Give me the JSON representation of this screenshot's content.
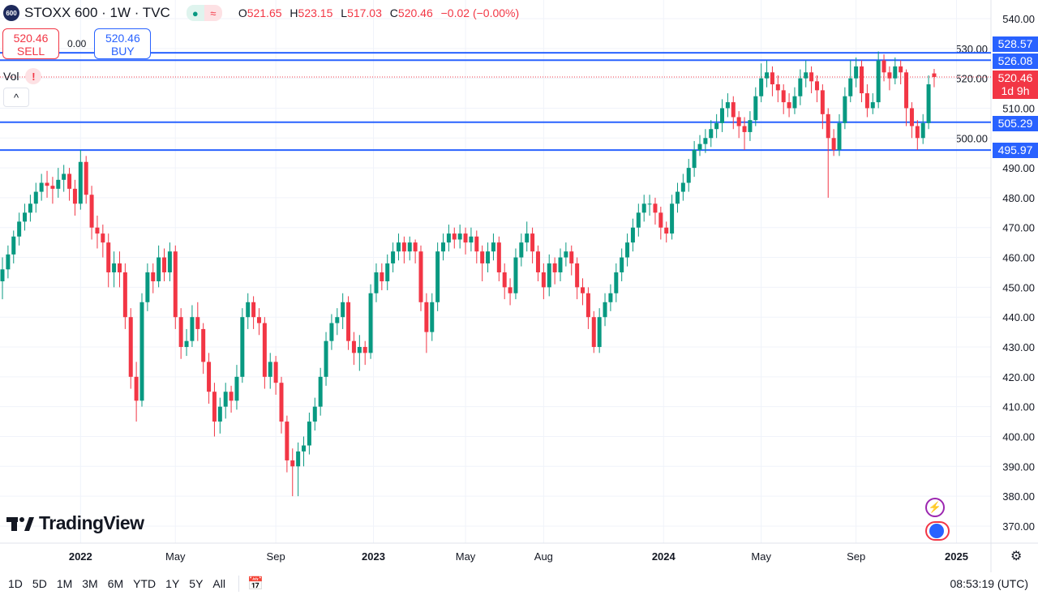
{
  "header": {
    "logo_text": "600",
    "symbol": "STOXX 600 · 1W · TVC",
    "o_label": "O",
    "o": "521.65",
    "h_label": "H",
    "h": "523.15",
    "l_label": "L",
    "l": "517.03",
    "c_label": "C",
    "c": "520.46",
    "change": "−0.02 (−0.00%)"
  },
  "trade": {
    "sell_price": "520.46",
    "sell_label": "SELL",
    "spread": "0.00",
    "buy_price": "520.46",
    "buy_label": "BUY"
  },
  "vol": {
    "label": "Vol",
    "warning": "!"
  },
  "collapse": "^",
  "brand": "TradingView",
  "price_tags": {
    "l1": "528.57",
    "l2": "526.08",
    "current": "520.46",
    "countdown": "1d 9h",
    "l3": "505.29",
    "l4": "495.97"
  },
  "ranges": [
    "1D",
    "5D",
    "1M",
    "3M",
    "6M",
    "YTD",
    "1Y",
    "5Y",
    "All"
  ],
  "clock": "08:53:19 (UTC)",
  "colors": {
    "up": "#089981",
    "down": "#f23645",
    "line": "#2962ff"
  },
  "chart_data": {
    "type": "candlestick",
    "title": "STOXX 600 · 1W · TVC",
    "interval": "1W",
    "ylim": [
      365,
      545
    ],
    "yticks": [
      540,
      530,
      520,
      510,
      500,
      490,
      480,
      470,
      460,
      450,
      440,
      430,
      420,
      410,
      400,
      390,
      380,
      370
    ],
    "ytick_labels": [
      "540.00",
      "530.00",
      "520.00",
      "510.00",
      "500.00",
      "490.00",
      "480.00",
      "470.00",
      "460.00",
      "450.00",
      "440.00",
      "430.00",
      "420.00",
      "410.00",
      "400.00",
      "390.00",
      "380.00",
      "370.00"
    ],
    "xticks": [
      {
        "label": "2022",
        "week": 14
      },
      {
        "label": "May",
        "week": 31
      },
      {
        "label": "Sep",
        "week": 49
      },
      {
        "label": "2023",
        "week": 66.5
      },
      {
        "label": "May",
        "week": 83
      },
      {
        "label": "Aug",
        "week": 97
      },
      {
        "label": "2024",
        "week": 118.5
      },
      {
        "label": "May",
        "week": 136
      },
      {
        "label": "Sep",
        "week": 153
      },
      {
        "label": "2025",
        "week": 171
      }
    ],
    "horizontal_lines": [
      528.57,
      526.08,
      505.29,
      495.97
    ],
    "last_price": 520.46,
    "candles_ohlc": [
      [
        452,
        460,
        446,
        456
      ],
      [
        456,
        464,
        453,
        461
      ],
      [
        461,
        469,
        458,
        467
      ],
      [
        467,
        475,
        464,
        472
      ],
      [
        472,
        478,
        469,
        475
      ],
      [
        475,
        481,
        472,
        478
      ],
      [
        478,
        485,
        475,
        482
      ],
      [
        482,
        488,
        479,
        485
      ],
      [
        485,
        489,
        480,
        484
      ],
      [
        484,
        487,
        478,
        483
      ],
      [
        483,
        490,
        480,
        486
      ],
      [
        486,
        491,
        482,
        488
      ],
      [
        488,
        490,
        479,
        483
      ],
      [
        483,
        486,
        474,
        478
      ],
      [
        478,
        496,
        476,
        492
      ],
      [
        492,
        494,
        478,
        481
      ],
      [
        481,
        484,
        466,
        470
      ],
      [
        470,
        474,
        463,
        468
      ],
      [
        468,
        471,
        460,
        465
      ],
      [
        465,
        468,
        450,
        455
      ],
      [
        455,
        462,
        450,
        458
      ],
      [
        458,
        462,
        450,
        455
      ],
      [
        455,
        458,
        436,
        440
      ],
      [
        440,
        443,
        416,
        420
      ],
      [
        420,
        425,
        405,
        412
      ],
      [
        412,
        448,
        410,
        445
      ],
      [
        445,
        458,
        442,
        455
      ],
      [
        455,
        458,
        448,
        452
      ],
      [
        452,
        464,
        450,
        460
      ],
      [
        460,
        463,
        452,
        455
      ],
      [
        455,
        465,
        452,
        462
      ],
      [
        462,
        464,
        436,
        440
      ],
      [
        440,
        443,
        426,
        430
      ],
      [
        430,
        436,
        427,
        432
      ],
      [
        432,
        444,
        430,
        440
      ],
      [
        440,
        445,
        432,
        436
      ],
      [
        436,
        438,
        421,
        425
      ],
      [
        425,
        428,
        411,
        415
      ],
      [
        415,
        418,
        400,
        405
      ],
      [
        405,
        413,
        401,
        410
      ],
      [
        410,
        418,
        406,
        415
      ],
      [
        415,
        417,
        408,
        412
      ],
      [
        412,
        424,
        409,
        420
      ],
      [
        420,
        443,
        418,
        440
      ],
      [
        440,
        448,
        436,
        445
      ],
      [
        445,
        447,
        436,
        440
      ],
      [
        440,
        443,
        434,
        438
      ],
      [
        438,
        440,
        416,
        420
      ],
      [
        420,
        428,
        416,
        425
      ],
      [
        425,
        427,
        414,
        418
      ],
      [
        418,
        420,
        401,
        405
      ],
      [
        405,
        407,
        388,
        392
      ],
      [
        392,
        396,
        380,
        390
      ],
      [
        390,
        398,
        380,
        395
      ],
      [
        395,
        400,
        390,
        397
      ],
      [
        397,
        408,
        394,
        405
      ],
      [
        405,
        413,
        402,
        410
      ],
      [
        410,
        423,
        407,
        420
      ],
      [
        420,
        435,
        417,
        432
      ],
      [
        432,
        441,
        429,
        438
      ],
      [
        438,
        443,
        434,
        440
      ],
      [
        440,
        448,
        436,
        445
      ],
      [
        445,
        447,
        429,
        432
      ],
      [
        432,
        435,
        424,
        428
      ],
      [
        428,
        434,
        422,
        430
      ],
      [
        430,
        432,
        424,
        428
      ],
      [
        428,
        451,
        426,
        448
      ],
      [
        448,
        458,
        445,
        455
      ],
      [
        455,
        458,
        449,
        452
      ],
      [
        452,
        461,
        449,
        458
      ],
      [
        458,
        465,
        455,
        462
      ],
      [
        462,
        468,
        459,
        465
      ],
      [
        465,
        467,
        458,
        462
      ],
      [
        462,
        467,
        459,
        465
      ],
      [
        465,
        466,
        458,
        462
      ],
      [
        462,
        464,
        442,
        445
      ],
      [
        445,
        448,
        428,
        435
      ],
      [
        435,
        448,
        432,
        445
      ],
      [
        445,
        465,
        442,
        462
      ],
      [
        462,
        468,
        459,
        465
      ],
      [
        465,
        471,
        462,
        468
      ],
      [
        468,
        470,
        463,
        466
      ],
      [
        466,
        471,
        463,
        468
      ],
      [
        468,
        470,
        461,
        465
      ],
      [
        465,
        470,
        462,
        467
      ],
      [
        467,
        469,
        458,
        462
      ],
      [
        462,
        464,
        452,
        458
      ],
      [
        458,
        465,
        455,
        462
      ],
      [
        462,
        468,
        459,
        465
      ],
      [
        465,
        467,
        452,
        455
      ],
      [
        455,
        458,
        446,
        450
      ],
      [
        450,
        453,
        444,
        448
      ],
      [
        448,
        463,
        446,
        460
      ],
      [
        460,
        468,
        457,
        465
      ],
      [
        465,
        472,
        462,
        468
      ],
      [
        468,
        470,
        458,
        462
      ],
      [
        462,
        464,
        452,
        455
      ],
      [
        455,
        458,
        446,
        450
      ],
      [
        450,
        461,
        447,
        458
      ],
      [
        458,
        460,
        451,
        455
      ],
      [
        455,
        463,
        452,
        460
      ],
      [
        460,
        465,
        457,
        462
      ],
      [
        462,
        464,
        454,
        458
      ],
      [
        458,
        460,
        446,
        450
      ],
      [
        450,
        453,
        444,
        448
      ],
      [
        448,
        450,
        436,
        440
      ],
      [
        440,
        442,
        428,
        430
      ],
      [
        430,
        443,
        428,
        440
      ],
      [
        440,
        448,
        437,
        445
      ],
      [
        445,
        451,
        442,
        448
      ],
      [
        448,
        458,
        445,
        455
      ],
      [
        455,
        463,
        452,
        460
      ],
      [
        460,
        468,
        457,
        465
      ],
      [
        465,
        473,
        462,
        470
      ],
      [
        470,
        478,
        467,
        475
      ],
      [
        475,
        481,
        472,
        478
      ],
      [
        478,
        481,
        474,
        478
      ],
      [
        478,
        480,
        471,
        475
      ],
      [
        475,
        477,
        466,
        470
      ],
      [
        470,
        472,
        465,
        468
      ],
      [
        468,
        481,
        466,
        478
      ],
      [
        478,
        485,
        475,
        482
      ],
      [
        482,
        488,
        479,
        485
      ],
      [
        485,
        493,
        482,
        490
      ],
      [
        490,
        499,
        487,
        496
      ],
      [
        496,
        501,
        494,
        498
      ],
      [
        498,
        503,
        495,
        500
      ],
      [
        500,
        506,
        497,
        503
      ],
      [
        503,
        508,
        500,
        505
      ],
      [
        505,
        513,
        502,
        510
      ],
      [
        510,
        515,
        507,
        512
      ],
      [
        512,
        514,
        503,
        507
      ],
      [
        507,
        509,
        500,
        504
      ],
      [
        504,
        507,
        496,
        502
      ],
      [
        502,
        509,
        499,
        506
      ],
      [
        506,
        517,
        504,
        514
      ],
      [
        514,
        525,
        512,
        520
      ],
      [
        520,
        526,
        517,
        522
      ],
      [
        522,
        524,
        514,
        518
      ],
      [
        518,
        521,
        512,
        516
      ],
      [
        516,
        518,
        508,
        512
      ],
      [
        512,
        515,
        507,
        510
      ],
      [
        510,
        517,
        508,
        514
      ],
      [
        514,
        523,
        511,
        520
      ],
      [
        520,
        526,
        517,
        522
      ],
      [
        522,
        524,
        515,
        519
      ],
      [
        519,
        521,
        512,
        516
      ],
      [
        516,
        518,
        503,
        508
      ],
      [
        508,
        510,
        480,
        500
      ],
      [
        500,
        503,
        494,
        496
      ],
      [
        496,
        508,
        494,
        505
      ],
      [
        505,
        517,
        503,
        514
      ],
      [
        514,
        526,
        512,
        520
      ],
      [
        520,
        527,
        517,
        524
      ],
      [
        524,
        526,
        512,
        515
      ],
      [
        515,
        518,
        507,
        510
      ],
      [
        510,
        515,
        508,
        512
      ],
      [
        512,
        529,
        510,
        526
      ],
      [
        526,
        528,
        519,
        522
      ],
      [
        522,
        524,
        516,
        520
      ],
      [
        520,
        527,
        518,
        524
      ],
      [
        524,
        526,
        518,
        522
      ],
      [
        522,
        523,
        504,
        510
      ],
      [
        510,
        512,
        500,
        504
      ],
      [
        504,
        506,
        496,
        500
      ],
      [
        500,
        508,
        498,
        505
      ],
      [
        505,
        521,
        503,
        518
      ],
      [
        521.65,
        523.15,
        517.03,
        520.46
      ]
    ]
  }
}
